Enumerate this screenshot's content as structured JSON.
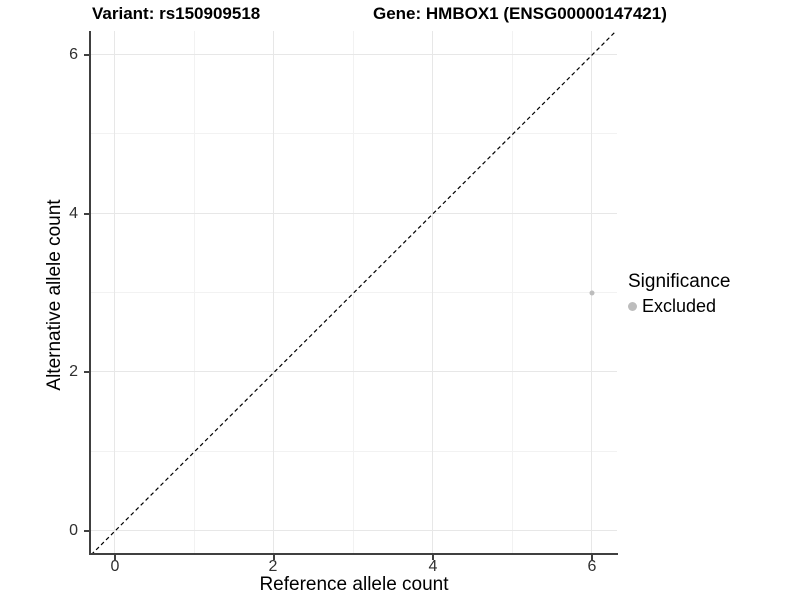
{
  "chart_data": {
    "type": "scatter",
    "title_left": "Variant: rs150909518",
    "title_right": "Gene: HMBOX1 (ENSG00000147421)",
    "xlabel": "Reference allele count",
    "ylabel": "Alternative allele count",
    "xlim": [
      -0.3,
      6.3
    ],
    "ylim": [
      -0.3,
      6.3
    ],
    "x_ticks": [
      "0",
      "2",
      "4",
      "6"
    ],
    "y_ticks": [
      "0",
      "2",
      "4",
      "6"
    ],
    "x_grid_major": [
      0,
      2,
      4,
      6
    ],
    "x_grid_minor": [
      1,
      3,
      5
    ],
    "y_grid_major": [
      0,
      2,
      4,
      6
    ],
    "y_grid_minor": [
      1,
      3,
      5
    ],
    "grid": "on",
    "points": [
      {
        "x": 6,
        "y": 3,
        "series": "Excluded"
      }
    ],
    "reference_line": {
      "equation": "y = x",
      "style": "dashed",
      "color": "#000000"
    },
    "legend": {
      "title": "Significance",
      "position": "right",
      "items": [
        {
          "label": "Excluded",
          "color": "#bdbdbd"
        }
      ]
    },
    "colors": {
      "point": "#bdbdbd",
      "grid_major": "#e7e7e7",
      "grid_minor": "#f2f2f2",
      "axis_line": "#404040",
      "background": "#ffffff"
    }
  }
}
